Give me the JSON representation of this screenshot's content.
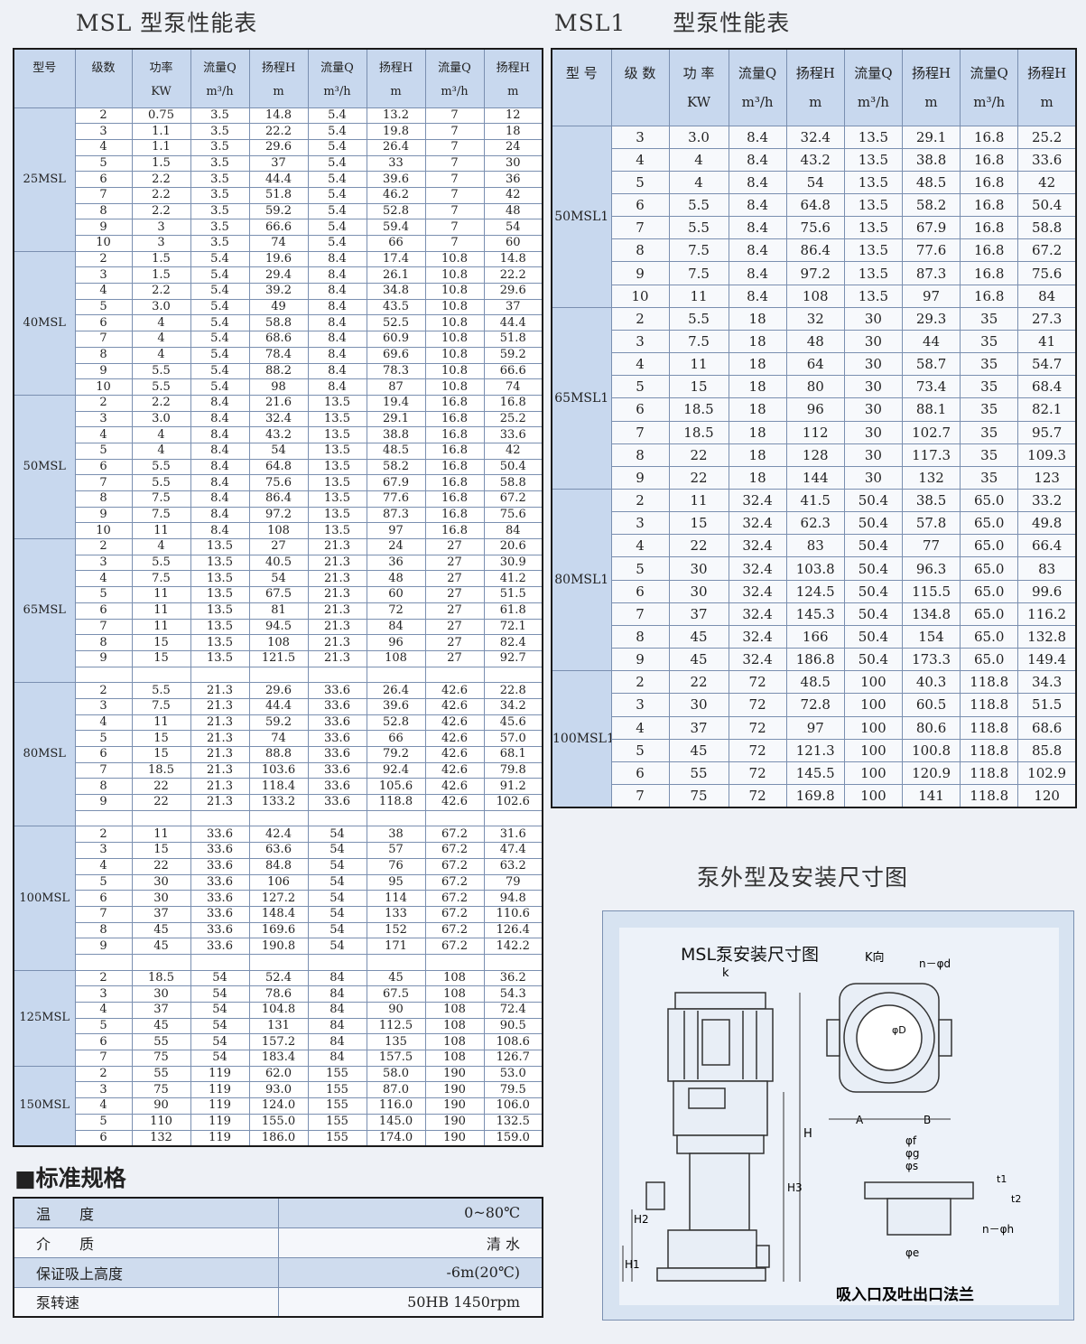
{
  "left": {
    "title": "MSL 型泵性能表",
    "headers": [
      "型号",
      "级数",
      "功率\nKW",
      "流量Q\nm³/h",
      "扬程H\nm",
      "流量Q\nm³/h",
      "扬程H\nm",
      "流量Q\nm³/h",
      "扬程H\nm"
    ],
    "groups": [
      {
        "model": "25MSL",
        "rows": [
          [
            "2",
            "0.75",
            "3.5",
            "14.8",
            "5.4",
            "13.2",
            "7",
            "12"
          ],
          [
            "3",
            "1.1",
            "3.5",
            "22.2",
            "5.4",
            "19.8",
            "7",
            "18"
          ],
          [
            "4",
            "1.1",
            "3.5",
            "29.6",
            "5.4",
            "26.4",
            "7",
            "24"
          ],
          [
            "5",
            "1.5",
            "3.5",
            "37",
            "5.4",
            "33",
            "7",
            "30"
          ],
          [
            "6",
            "2.2",
            "3.5",
            "44.4",
            "5.4",
            "39.6",
            "7",
            "36"
          ],
          [
            "7",
            "2.2",
            "3.5",
            "51.8",
            "5.4",
            "46.2",
            "7",
            "42"
          ],
          [
            "8",
            "2.2",
            "3.5",
            "59.2",
            "5.4",
            "52.8",
            "7",
            "48"
          ],
          [
            "9",
            "3",
            "3.5",
            "66.6",
            "5.4",
            "59.4",
            "7",
            "54"
          ],
          [
            "10",
            "3",
            "3.5",
            "74",
            "5.4",
            "66",
            "7",
            "60"
          ]
        ]
      },
      {
        "model": "40MSL",
        "rows": [
          [
            "2",
            "1.5",
            "5.4",
            "19.6",
            "8.4",
            "17.4",
            "10.8",
            "14.8"
          ],
          [
            "3",
            "1.5",
            "5.4",
            "29.4",
            "8.4",
            "26.1",
            "10.8",
            "22.2"
          ],
          [
            "4",
            "2.2",
            "5.4",
            "39.2",
            "8.4",
            "34.8",
            "10.8",
            "29.6"
          ],
          [
            "5",
            "3.0",
            "5.4",
            "49",
            "8.4",
            "43.5",
            "10.8",
            "37"
          ],
          [
            "6",
            "4",
            "5.4",
            "58.8",
            "8.4",
            "52.5",
            "10.8",
            "44.4"
          ],
          [
            "7",
            "4",
            "5.4",
            "68.6",
            "8.4",
            "60.9",
            "10.8",
            "51.8"
          ],
          [
            "8",
            "4",
            "5.4",
            "78.4",
            "8.4",
            "69.6",
            "10.8",
            "59.2"
          ],
          [
            "9",
            "5.5",
            "5.4",
            "88.2",
            "8.4",
            "78.3",
            "10.8",
            "66.6"
          ],
          [
            "10",
            "5.5",
            "5.4",
            "98",
            "8.4",
            "87",
            "10.8",
            "74"
          ]
        ]
      },
      {
        "model": "50MSL",
        "rows": [
          [
            "2",
            "2.2",
            "8.4",
            "21.6",
            "13.5",
            "19.4",
            "16.8",
            "16.8"
          ],
          [
            "3",
            "3.0",
            "8.4",
            "32.4",
            "13.5",
            "29.1",
            "16.8",
            "25.2"
          ],
          [
            "4",
            "4",
            "8.4",
            "43.2",
            "13.5",
            "38.8",
            "16.8",
            "33.6"
          ],
          [
            "5",
            "4",
            "8.4",
            "54",
            "13.5",
            "48.5",
            "16.8",
            "42"
          ],
          [
            "6",
            "5.5",
            "8.4",
            "64.8",
            "13.5",
            "58.2",
            "16.8",
            "50.4"
          ],
          [
            "7",
            "5.5",
            "8.4",
            "75.6",
            "13.5",
            "67.9",
            "16.8",
            "58.8"
          ],
          [
            "8",
            "7.5",
            "8.4",
            "86.4",
            "13.5",
            "77.6",
            "16.8",
            "67.2"
          ],
          [
            "9",
            "7.5",
            "8.4",
            "97.2",
            "13.5",
            "87.3",
            "16.8",
            "75.6"
          ],
          [
            "10",
            "11",
            "8.4",
            "108",
            "13.5",
            "97",
            "16.8",
            "84"
          ]
        ]
      },
      {
        "model": "65MSL",
        "rows": [
          [
            "2",
            "4",
            "13.5",
            "27",
            "21.3",
            "24",
            "27",
            "20.6"
          ],
          [
            "3",
            "5.5",
            "13.5",
            "40.5",
            "21.3",
            "36",
            "27",
            "30.9"
          ],
          [
            "4",
            "7.5",
            "13.5",
            "54",
            "21.3",
            "48",
            "27",
            "41.2"
          ],
          [
            "5",
            "11",
            "13.5",
            "67.5",
            "21.3",
            "60",
            "27",
            "51.5"
          ],
          [
            "6",
            "11",
            "13.5",
            "81",
            "21.3",
            "72",
            "27",
            "61.8"
          ],
          [
            "7",
            "11",
            "13.5",
            "94.5",
            "21.3",
            "84",
            "27",
            "72.1"
          ],
          [
            "8",
            "15",
            "13.5",
            "108",
            "21.3",
            "96",
            "27",
            "82.4"
          ],
          [
            "9",
            "15",
            "13.5",
            "121.5",
            "21.3",
            "108",
            "27",
            "92.7"
          ],
          [
            "",
            "",
            "",
            "",
            "",
            "",
            "",
            ""
          ]
        ]
      },
      {
        "model": "80MSL",
        "rows": [
          [
            "2",
            "5.5",
            "21.3",
            "29.6",
            "33.6",
            "26.4",
            "42.6",
            "22.8"
          ],
          [
            "3",
            "7.5",
            "21.3",
            "44.4",
            "33.6",
            "39.6",
            "42.6",
            "34.2"
          ],
          [
            "4",
            "11",
            "21.3",
            "59.2",
            "33.6",
            "52.8",
            "42.6",
            "45.6"
          ],
          [
            "5",
            "15",
            "21.3",
            "74",
            "33.6",
            "66",
            "42.6",
            "57.0"
          ],
          [
            "6",
            "15",
            "21.3",
            "88.8",
            "33.6",
            "79.2",
            "42.6",
            "68.1"
          ],
          [
            "7",
            "18.5",
            "21.3",
            "103.6",
            "33.6",
            "92.4",
            "42.6",
            "79.8"
          ],
          [
            "8",
            "22",
            "21.3",
            "118.4",
            "33.6",
            "105.6",
            "42.6",
            "91.2"
          ],
          [
            "9",
            "22",
            "21.3",
            "133.2",
            "33.6",
            "118.8",
            "42.6",
            "102.6"
          ],
          [
            "",
            "",
            "",
            "",
            "",
            "",
            "",
            ""
          ]
        ]
      },
      {
        "model": "100MSL",
        "rows": [
          [
            "2",
            "11",
            "33.6",
            "42.4",
            "54",
            "38",
            "67.2",
            "31.6"
          ],
          [
            "3",
            "15",
            "33.6",
            "63.6",
            "54",
            "57",
            "67.2",
            "47.4"
          ],
          [
            "4",
            "22",
            "33.6",
            "84.8",
            "54",
            "76",
            "67.2",
            "63.2"
          ],
          [
            "5",
            "30",
            "33.6",
            "106",
            "54",
            "95",
            "67.2",
            "79"
          ],
          [
            "6",
            "30",
            "33.6",
            "127.2",
            "54",
            "114",
            "67.2",
            "94.8"
          ],
          [
            "7",
            "37",
            "33.6",
            "148.4",
            "54",
            "133",
            "67.2",
            "110.6"
          ],
          [
            "8",
            "45",
            "33.6",
            "169.6",
            "54",
            "152",
            "67.2",
            "126.4"
          ],
          [
            "9",
            "45",
            "33.6",
            "190.8",
            "54",
            "171",
            "67.2",
            "142.2"
          ],
          [
            "",
            "",
            "",
            "",
            "",
            "",
            "",
            ""
          ]
        ]
      },
      {
        "model": "125MSL",
        "rows": [
          [
            "2",
            "18.5",
            "54",
            "52.4",
            "84",
            "45",
            "108",
            "36.2"
          ],
          [
            "3",
            "30",
            "54",
            "78.6",
            "84",
            "67.5",
            "108",
            "54.3"
          ],
          [
            "4",
            "37",
            "54",
            "104.8",
            "84",
            "90",
            "108",
            "72.4"
          ],
          [
            "5",
            "45",
            "54",
            "131",
            "84",
            "112.5",
            "108",
            "90.5"
          ],
          [
            "6",
            "55",
            "54",
            "157.2",
            "84",
            "135",
            "108",
            "108.6"
          ],
          [
            "7",
            "75",
            "54",
            "183.4",
            "84",
            "157.5",
            "108",
            "126.7"
          ]
        ]
      },
      {
        "model": "150MSL",
        "rows": [
          [
            "2",
            "55",
            "119",
            "62.0",
            "155",
            "58.0",
            "190",
            "53.0"
          ],
          [
            "3",
            "75",
            "119",
            "93.0",
            "155",
            "87.0",
            "190",
            "79.5"
          ],
          [
            "4",
            "90",
            "119",
            "124.0",
            "155",
            "116.0",
            "190",
            "106.0"
          ],
          [
            "5",
            "110",
            "119",
            "155.0",
            "155",
            "145.0",
            "190",
            "132.5"
          ],
          [
            "6",
            "132",
            "119",
            "186.0",
            "155",
            "174.0",
            "190",
            "159.0"
          ]
        ]
      }
    ]
  },
  "right": {
    "title": "MSL1　　型泵性能表",
    "headers": [
      "型 号",
      "级 数",
      "功 率\nKW",
      "流量Q\nm³/h",
      "扬程H\nm",
      "流量Q\nm³/h",
      "扬程H\nm",
      "流量Q\nm³/h",
      "扬程H\nm"
    ],
    "groups": [
      {
        "model": "50MSL1",
        "rows": [
          [
            "3",
            "3.0",
            "8.4",
            "32.4",
            "13.5",
            "29.1",
            "16.8",
            "25.2"
          ],
          [
            "4",
            "4",
            "8.4",
            "43.2",
            "13.5",
            "38.8",
            "16.8",
            "33.6"
          ],
          [
            "5",
            "4",
            "8.4",
            "54",
            "13.5",
            "48.5",
            "16.8",
            "42"
          ],
          [
            "6",
            "5.5",
            "8.4",
            "64.8",
            "13.5",
            "58.2",
            "16.8",
            "50.4"
          ],
          [
            "7",
            "5.5",
            "8.4",
            "75.6",
            "13.5",
            "67.9",
            "16.8",
            "58.8"
          ],
          [
            "8",
            "7.5",
            "8.4",
            "86.4",
            "13.5",
            "77.6",
            "16.8",
            "67.2"
          ],
          [
            "9",
            "7.5",
            "8.4",
            "97.2",
            "13.5",
            "87.3",
            "16.8",
            "75.6"
          ],
          [
            "10",
            "11",
            "8.4",
            "108",
            "13.5",
            "97",
            "16.8",
            "84"
          ]
        ]
      },
      {
        "model": "65MSL1",
        "rows": [
          [
            "2",
            "5.5",
            "18",
            "32",
            "30",
            "29.3",
            "35",
            "27.3"
          ],
          [
            "3",
            "7.5",
            "18",
            "48",
            "30",
            "44",
            "35",
            "41"
          ],
          [
            "4",
            "11",
            "18",
            "64",
            "30",
            "58.7",
            "35",
            "54.7"
          ],
          [
            "5",
            "15",
            "18",
            "80",
            "30",
            "73.4",
            "35",
            "68.4"
          ],
          [
            "6",
            "18.5",
            "18",
            "96",
            "30",
            "88.1",
            "35",
            "82.1"
          ],
          [
            "7",
            "18.5",
            "18",
            "112",
            "30",
            "102.7",
            "35",
            "95.7"
          ],
          [
            "8",
            "22",
            "18",
            "128",
            "30",
            "117.3",
            "35",
            "109.3"
          ],
          [
            "9",
            "22",
            "18",
            "144",
            "30",
            "132",
            "35",
            "123"
          ]
        ]
      },
      {
        "model": "80MSL1",
        "rows": [
          [
            "2",
            "11",
            "32.4",
            "41.5",
            "50.4",
            "38.5",
            "65.0",
            "33.2"
          ],
          [
            "3",
            "15",
            "32.4",
            "62.3",
            "50.4",
            "57.8",
            "65.0",
            "49.8"
          ],
          [
            "4",
            "22",
            "32.4",
            "83",
            "50.4",
            "77",
            "65.0",
            "66.4"
          ],
          [
            "5",
            "30",
            "32.4",
            "103.8",
            "50.4",
            "96.3",
            "65.0",
            "83"
          ],
          [
            "6",
            "30",
            "32.4",
            "124.5",
            "50.4",
            "115.5",
            "65.0",
            "99.6"
          ],
          [
            "7",
            "37",
            "32.4",
            "145.3",
            "50.4",
            "134.8",
            "65.0",
            "116.2"
          ],
          [
            "8",
            "45",
            "32.4",
            "166",
            "50.4",
            "154",
            "65.0",
            "132.8"
          ],
          [
            "9",
            "45",
            "32.4",
            "186.8",
            "50.4",
            "173.3",
            "65.0",
            "149.4"
          ]
        ]
      },
      {
        "model": "100MSL1",
        "rows": [
          [
            "2",
            "22",
            "72",
            "48.5",
            "100",
            "40.3",
            "118.8",
            "34.3"
          ],
          [
            "3",
            "30",
            "72",
            "72.8",
            "100",
            "60.5",
            "118.8",
            "51.5"
          ],
          [
            "4",
            "37",
            "72",
            "97",
            "100",
            "80.6",
            "118.8",
            "68.6"
          ],
          [
            "5",
            "45",
            "72",
            "121.3",
            "100",
            "100.8",
            "118.8",
            "85.8"
          ],
          [
            "6",
            "55",
            "72",
            "145.5",
            "100",
            "120.9",
            "118.8",
            "102.9"
          ],
          [
            "7",
            "75",
            "72",
            "169.8",
            "100",
            "141",
            "118.8",
            "120"
          ]
        ]
      }
    ]
  },
  "spec": {
    "title": "■标准规格",
    "rows": [
      {
        "label": "温　　度",
        "value": "0~80℃"
      },
      {
        "label": "介　　质",
        "value": "清 水"
      },
      {
        "label": "保证吸上高度",
        "value": "-6m(20℃)"
      },
      {
        "label": "泵转速",
        "value": "50HB 1450rpm"
      }
    ]
  },
  "diagram": {
    "title": "泵外型及安装尺寸图",
    "heading": "MSL泵安装尺寸图",
    "k_direction": "K向",
    "k": "k",
    "labels": {
      "nd": "n－φd",
      "D": "φD",
      "A": "A",
      "B": "B",
      "H": "H",
      "H3": "H3",
      "H2": "H2",
      "H1": "H1",
      "f": "φf",
      "g": "φg",
      "s": "φs",
      "t1": "t1",
      "t2": "t2",
      "nh": "n－φh",
      "e": "φe"
    },
    "caption": "吸入口及吐出口法兰"
  },
  "colors": {
    "header_bg": "#c8d8ee",
    "grid": "#7a8fb0",
    "page_bg": "#eef1f6"
  }
}
